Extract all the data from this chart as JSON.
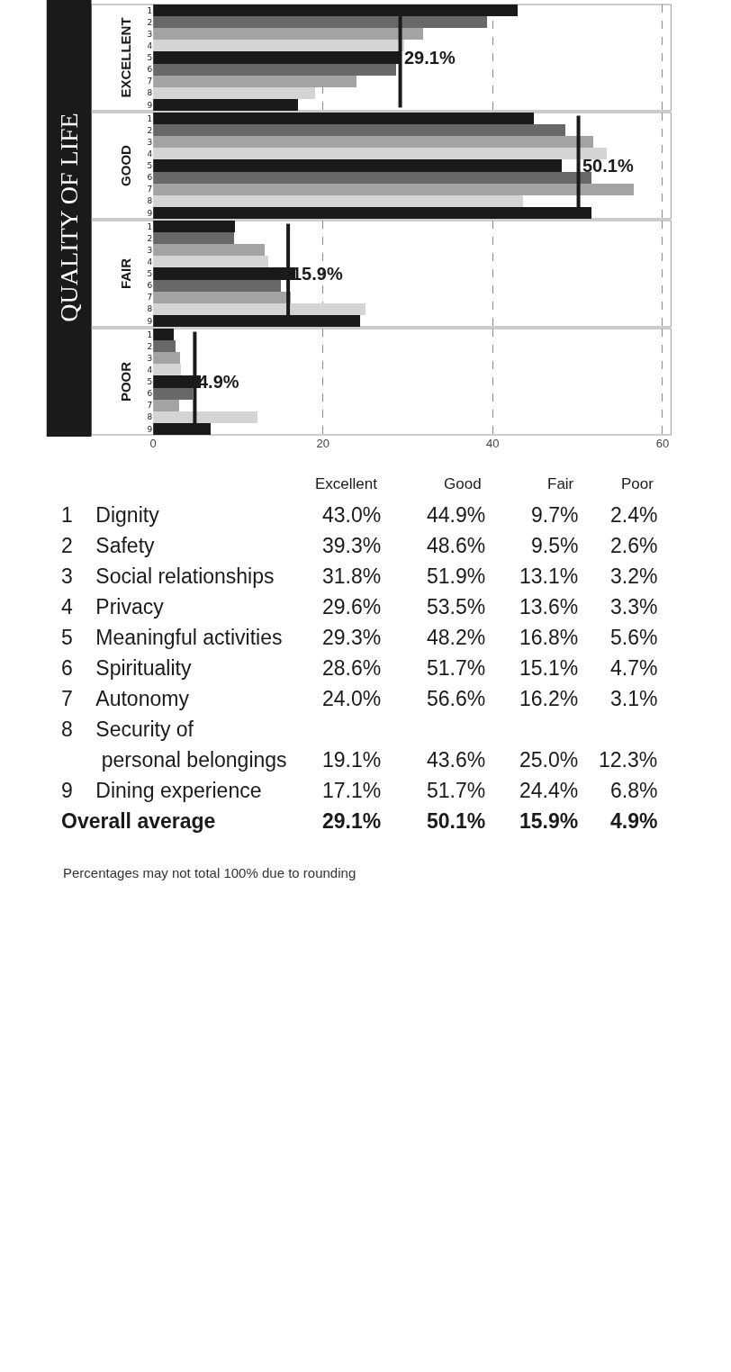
{
  "chart_data": [
    {
      "type": "bar",
      "orientation": "horizontal",
      "title": "QUALITY OF LIFE",
      "ylabel": "EXCELLENT",
      "categories": [
        "1",
        "2",
        "3",
        "4",
        "5",
        "6",
        "7",
        "8",
        "9"
      ],
      "values": [
        43.0,
        39.3,
        31.8,
        29.6,
        29.3,
        28.6,
        24.0,
        19.1,
        17.1
      ],
      "colors": [
        "#1a1a1a",
        "#686868",
        "#a3a3a3",
        "#d4d4d4",
        "#1a1a1a",
        "#686868",
        "#a3a3a3",
        "#d4d4d4",
        "#1a1a1a"
      ],
      "xlim": [
        0,
        61
      ],
      "xticks": [
        0,
        20,
        40,
        60
      ],
      "grid": "x",
      "tick_labels": "y",
      "ref_lines": [
        {
          "axis": "x",
          "value": 29.1,
          "label": "29.1%",
          "color": "#1a1a1a"
        }
      ]
    },
    {
      "type": "bar",
      "orientation": "horizontal",
      "ylabel": "GOOD",
      "categories": [
        "1",
        "2",
        "3",
        "4",
        "5",
        "6",
        "7",
        "8",
        "9"
      ],
      "values": [
        44.9,
        48.6,
        51.9,
        53.5,
        48.2,
        51.7,
        56.6,
        43.6,
        51.7
      ],
      "colors": [
        "#1a1a1a",
        "#686868",
        "#a3a3a3",
        "#d4d4d4",
        "#1a1a1a",
        "#686868",
        "#a3a3a3",
        "#d4d4d4",
        "#1a1a1a"
      ],
      "xlim": [
        0,
        61
      ],
      "xticks": [
        0,
        20,
        40,
        60
      ],
      "grid": "x",
      "tick_labels": "y",
      "ref_lines": [
        {
          "axis": "x",
          "value": 50.1,
          "label": "50.1%",
          "color": "#1a1a1a"
        }
      ]
    },
    {
      "type": "bar",
      "orientation": "horizontal",
      "ylabel": "FAIR",
      "categories": [
        "1",
        "2",
        "3",
        "4",
        "5",
        "6",
        "7",
        "8",
        "9"
      ],
      "values": [
        9.7,
        9.5,
        13.1,
        13.6,
        16.8,
        15.1,
        16.2,
        25.0,
        24.4
      ],
      "colors": [
        "#1a1a1a",
        "#686868",
        "#a3a3a3",
        "#d4d4d4",
        "#1a1a1a",
        "#686868",
        "#a3a3a3",
        "#d4d4d4",
        "#1a1a1a"
      ],
      "xlim": [
        0,
        61
      ],
      "xticks": [
        0,
        20,
        40,
        60
      ],
      "grid": "x",
      "tick_labels": "y",
      "ref_lines": [
        {
          "axis": "x",
          "value": 15.9,
          "label": "15.9%",
          "color": "#1a1a1a"
        }
      ]
    },
    {
      "type": "bar",
      "orientation": "horizontal",
      "ylabel": "POOR",
      "categories": [
        "1",
        "2",
        "3",
        "4",
        "5",
        "6",
        "7",
        "8",
        "9"
      ],
      "values": [
        2.4,
        2.6,
        3.2,
        3.3,
        5.6,
        4.7,
        3.1,
        12.3,
        6.8
      ],
      "colors": [
        "#1a1a1a",
        "#686868",
        "#a3a3a3",
        "#d4d4d4",
        "#1a1a1a",
        "#686868",
        "#a3a3a3",
        "#d4d4d4",
        "#1a1a1a"
      ],
      "xlim": [
        0,
        61
      ],
      "xticks": [
        0,
        20,
        40,
        60
      ],
      "grid": "x",
      "ref_lines": [
        {
          "axis": "x",
          "value": 4.9,
          "label": "4.9%",
          "color": "#1a1a1a"
        }
      ]
    },
    {
      "type": "other",
      "categories": [
        "Excellent",
        "Good",
        "Fair",
        "Poor"
      ],
      "y_categories": [
        "Dignity",
        "Safety",
        "Social relationships",
        "Privacy",
        "Meaningful activities",
        "Spirituality",
        "Autonomy",
        "Security of\npersonal belongings",
        "Dining experience",
        "Overall average"
      ],
      "y2_categories": [
        "1",
        "2",
        "3",
        "4",
        "5",
        "6",
        "7",
        "8",
        "9"
      ],
      "cell_labels": [
        [
          "43.0%",
          "44.9%",
          "9.7%",
          "2.4%"
        ],
        [
          "39.3%",
          "48.6%",
          "9.5%",
          "2.6%"
        ],
        [
          "31.8%",
          "51.9%",
          "13.1%",
          "3.2%"
        ],
        [
          "29.6%",
          "53.5%",
          "13.6%",
          "3.3%"
        ],
        [
          "29.3%",
          "48.2%",
          "16.8%",
          "5.6%"
        ],
        [
          "28.6%",
          "51.7%",
          "15.1%",
          "4.7%"
        ],
        [
          "24.0%",
          "56.6%",
          "16.2%",
          "3.1%"
        ],
        [
          "19.1%",
          "43.6%",
          "25.0%",
          "12.3%"
        ],
        [
          "17.1%",
          "51.7%",
          "24.4%",
          "6.8%"
        ],
        [
          "29.1%",
          "50.1%",
          "15.9%",
          "4.9%"
        ]
      ],
      "annotations": [
        "Percentages may not total 100% due to rounding"
      ]
    }
  ]
}
